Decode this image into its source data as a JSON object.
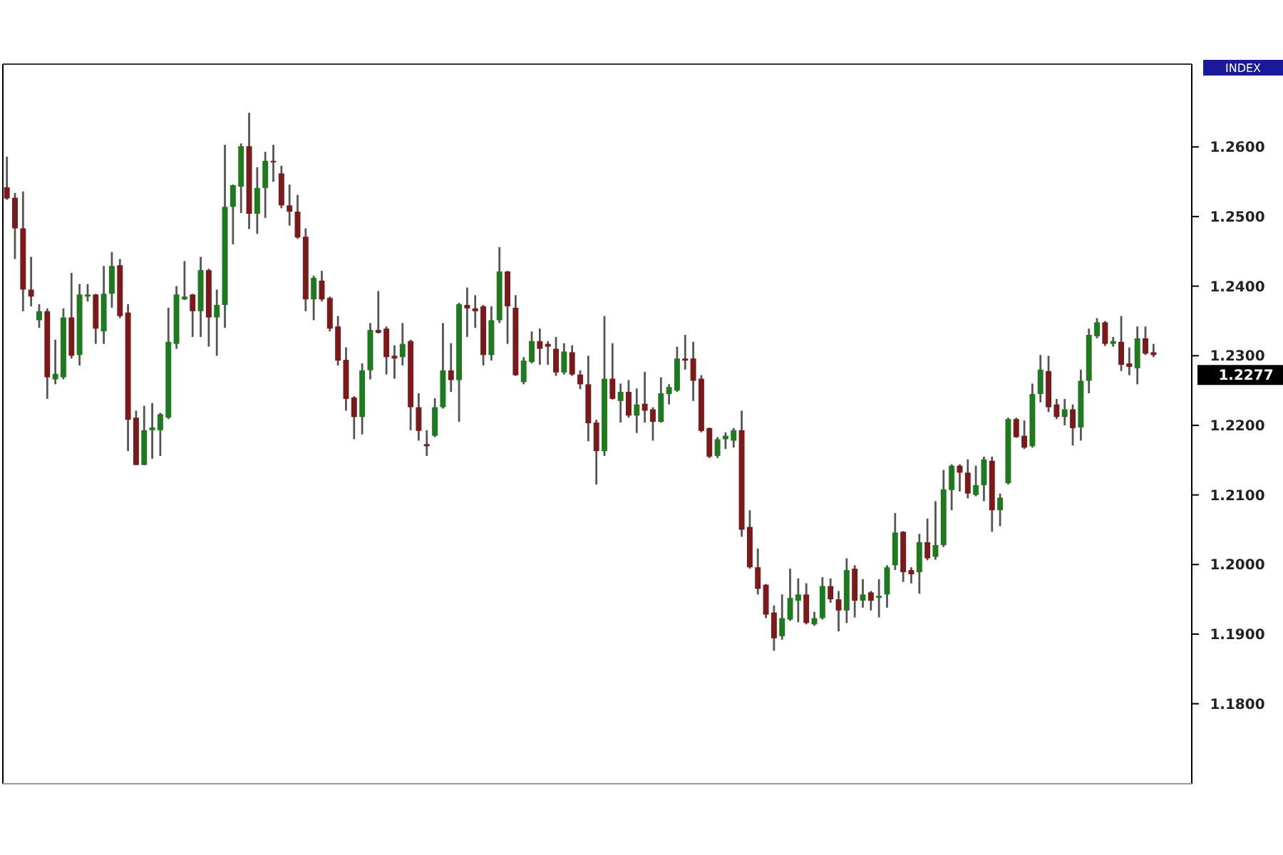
{
  "chart_data": {
    "type": "candlestick",
    "categories": [
      null,
      null,
      null,
      null,
      null,
      null,
      null,
      null,
      null,
      null,
      null,
      null,
      null,
      null,
      null,
      null,
      null,
      null,
      null,
      null,
      null,
      null,
      null,
      null,
      null,
      null,
      null,
      null,
      null,
      null,
      null,
      null,
      null,
      null,
      null,
      null,
      null,
      null,
      null,
      null,
      null,
      null,
      null,
      null,
      null,
      null,
      null,
      null,
      null,
      null,
      null,
      null,
      null,
      null,
      null,
      null,
      null,
      null,
      null,
      null,
      null,
      null,
      null,
      null,
      null,
      null,
      null,
      null,
      null,
      null,
      null,
      null,
      null,
      null,
      null,
      null,
      null,
      null,
      null,
      null,
      null,
      null,
      null,
      null,
      null,
      null,
      null,
      null,
      null,
      null,
      null,
      null,
      null,
      null,
      null,
      null,
      null,
      null,
      null,
      null,
      null,
      null,
      null,
      null,
      null,
      null,
      null,
      null,
      null,
      null,
      null,
      null,
      null,
      null,
      null,
      null,
      null,
      null,
      null,
      null,
      null,
      null,
      null,
      null,
      null,
      null,
      null,
      null,
      null,
      null,
      null,
      null,
      null,
      null,
      null,
      null,
      null,
      null,
      null,
      null,
      null,
      null,
      null
    ],
    "ohlc": [
      [
        1.2542,
        1.2586,
        1.2524,
        1.2526
      ],
      [
        1.2527,
        1.2534,
        1.2439,
        1.2483
      ],
      [
        1.2483,
        1.2536,
        1.2364,
        1.2395
      ],
      [
        1.2395,
        1.2442,
        1.2371,
        1.2385
      ],
      [
        1.2351,
        1.2374,
        1.234,
        1.2364
      ],
      [
        1.2364,
        1.2368,
        1.2238,
        1.2269
      ],
      [
        1.2266,
        1.2323,
        1.2259,
        1.2274
      ],
      [
        1.2269,
        1.2368,
        1.2266,
        1.2355
      ],
      [
        1.2355,
        1.2419,
        1.2296,
        1.23
      ],
      [
        1.2301,
        1.2403,
        1.2286,
        1.2388
      ],
      [
        1.2385,
        1.2403,
        1.2378,
        1.2388
      ],
      [
        1.2388,
        1.2389,
        1.2317,
        1.2339
      ],
      [
        1.2335,
        1.2429,
        1.2317,
        1.2389
      ],
      [
        1.2389,
        1.2449,
        1.2369,
        1.2429
      ],
      [
        1.243,
        1.2439,
        1.2354,
        1.2357
      ],
      [
        1.2362,
        1.2374,
        1.2163,
        1.2208
      ],
      [
        1.2211,
        1.2221,
        1.2143,
        1.2143
      ],
      [
        1.2143,
        1.2228,
        1.2143,
        1.2193
      ],
      [
        1.2193,
        1.2232,
        1.2152,
        1.2197
      ],
      [
        1.2193,
        1.2218,
        1.2156,
        1.2216
      ],
      [
        1.2211,
        1.2369,
        1.2209,
        1.232
      ],
      [
        1.2317,
        1.24,
        1.231,
        1.2388
      ],
      [
        1.2381,
        1.2436,
        1.238,
        1.2385
      ],
      [
        1.2388,
        1.2389,
        1.2327,
        1.2364
      ],
      [
        1.2364,
        1.2442,
        1.2327,
        1.2423
      ],
      [
        1.2423,
        1.2425,
        1.2313,
        1.2355
      ],
      [
        1.2355,
        1.2395,
        1.23,
        1.2373
      ],
      [
        1.2373,
        1.2603,
        1.234,
        1.2514
      ],
      [
        1.2514,
        1.2546,
        1.246,
        1.2545
      ],
      [
        1.2543,
        1.2605,
        1.2505,
        1.2601
      ],
      [
        1.2601,
        1.2649,
        1.2482,
        1.2504
      ],
      [
        1.2504,
        1.2571,
        1.2475,
        1.2541
      ],
      [
        1.2541,
        1.2593,
        1.2498,
        1.258
      ],
      [
        1.258,
        1.2603,
        1.255,
        1.2578
      ],
      [
        1.2562,
        1.2573,
        1.2512,
        1.2516
      ],
      [
        1.2516,
        1.2546,
        1.2487,
        1.2507
      ],
      [
        1.2507,
        1.2531,
        1.2468,
        1.247
      ],
      [
        1.2471,
        1.2483,
        1.2364,
        1.2381
      ],
      [
        1.2381,
        1.2415,
        1.2351,
        1.2412
      ],
      [
        1.2408,
        1.2422,
        1.2378,
        1.2381
      ],
      [
        1.2383,
        1.2385,
        1.2335,
        1.2339
      ],
      [
        1.2342,
        1.2357,
        1.2286,
        1.2293
      ],
      [
        1.2294,
        1.2312,
        1.2221,
        1.2238
      ],
      [
        1.224,
        1.2242,
        1.218,
        1.2212
      ],
      [
        1.2212,
        1.2289,
        1.2187,
        1.2279
      ],
      [
        1.2279,
        1.2347,
        1.2266,
        1.2337
      ],
      [
        1.2337,
        1.2393,
        1.2332,
        1.2333
      ],
      [
        1.2339,
        1.2342,
        1.2273,
        1.2298
      ],
      [
        1.23,
        1.2315,
        1.2267,
        1.2296
      ],
      [
        1.2298,
        1.2347,
        1.2286,
        1.2317
      ],
      [
        1.2321,
        1.2323,
        1.2193,
        1.2226
      ],
      [
        1.2226,
        1.2246,
        1.2178,
        1.2192
      ],
      [
        1.2173,
        1.2193,
        1.2156,
        1.217
      ],
      [
        1.2185,
        1.2239,
        1.2183,
        1.2226
      ],
      [
        1.2226,
        1.2347,
        1.2224,
        1.2279
      ],
      [
        1.2279,
        1.2318,
        1.2248,
        1.2265
      ],
      [
        1.2265,
        1.2376,
        1.2205,
        1.2374
      ],
      [
        1.2373,
        1.2398,
        1.2327,
        1.2368
      ],
      [
        1.2368,
        1.2387,
        1.234,
        1.2364
      ],
      [
        1.2371,
        1.2373,
        1.2286,
        1.2301
      ],
      [
        1.2301,
        1.2371,
        1.2293,
        1.2351
      ],
      [
        1.2351,
        1.2456,
        1.2347,
        1.2421
      ],
      [
        1.2421,
        1.2422,
        1.2317,
        1.2371
      ],
      [
        1.2369,
        1.2387,
        1.2271,
        1.2272
      ],
      [
        1.2262,
        1.2298,
        1.2259,
        1.2293
      ],
      [
        1.2291,
        1.2335,
        1.2289,
        1.2321
      ],
      [
        1.2321,
        1.2339,
        1.2287,
        1.231
      ],
      [
        1.2317,
        1.2321,
        1.2287,
        1.2313
      ],
      [
        1.231,
        1.2327,
        1.2271,
        1.2276
      ],
      [
        1.2276,
        1.2318,
        1.2273,
        1.2306
      ],
      [
        1.2305,
        1.2315,
        1.2271,
        1.2273
      ],
      [
        1.2273,
        1.2279,
        1.2252,
        1.2259
      ],
      [
        1.2259,
        1.23,
        1.2177,
        1.2203
      ],
      [
        1.2204,
        1.2208,
        1.2115,
        1.2163
      ],
      [
        1.2163,
        1.2357,
        1.2156,
        1.2267
      ],
      [
        1.2267,
        1.2318,
        1.2237,
        1.2238
      ],
      [
        1.2235,
        1.226,
        1.2204,
        1.2248
      ],
      [
        1.2248,
        1.2265,
        1.2211,
        1.2214
      ],
      [
        1.2214,
        1.2253,
        1.2189,
        1.223
      ],
      [
        1.2231,
        1.2277,
        1.2204,
        1.2221
      ],
      [
        1.2223,
        1.2226,
        1.2178,
        1.2205
      ],
      [
        1.2205,
        1.2269,
        1.2204,
        1.2246
      ],
      [
        1.2245,
        1.2259,
        1.223,
        1.2255
      ],
      [
        1.225,
        1.2313,
        1.2248,
        1.2296
      ],
      [
        1.2296,
        1.233,
        1.228,
        1.2293
      ],
      [
        1.2296,
        1.232,
        1.2235,
        1.2264
      ],
      [
        1.2267,
        1.2272,
        1.219,
        1.2192
      ],
      [
        1.2196,
        1.2197,
        1.2153,
        1.2155
      ],
      [
        1.2156,
        1.2183,
        1.2153,
        1.218
      ],
      [
        1.218,
        1.219,
        1.2166,
        1.2185
      ],
      [
        1.2178,
        1.2196,
        1.2168,
        1.2193
      ],
      [
        1.2193,
        1.2221,
        1.204,
        1.205
      ],
      [
        1.2054,
        1.2078,
        1.1994,
        1.1996
      ],
      [
        1.1996,
        1.2023,
        1.1957,
        1.1965
      ],
      [
        1.1971,
        1.1972,
        1.1923,
        1.1928
      ],
      [
        1.1931,
        1.1941,
        1.1876,
        1.1894
      ],
      [
        1.1897,
        1.1957,
        1.1892,
        1.1923
      ],
      [
        1.1921,
        1.1994,
        1.1919,
        1.1952
      ],
      [
        1.1948,
        1.198,
        1.1917,
        1.1957
      ],
      [
        1.1957,
        1.1973,
        1.1914,
        1.1916
      ],
      [
        1.1914,
        1.1932,
        1.1912,
        1.1923
      ],
      [
        1.1923,
        1.1982,
        1.1921,
        1.1969
      ],
      [
        1.1969,
        1.198,
        1.1945,
        1.195
      ],
      [
        1.195,
        1.1962,
        1.1904,
        1.1934
      ],
      [
        1.1934,
        1.2009,
        1.1916,
        1.1992
      ],
      [
        1.1994,
        1.1999,
        1.1924,
        1.1948
      ],
      [
        1.1948,
        1.1979,
        1.1938,
        1.1957
      ],
      [
        1.196,
        1.1962,
        1.1934,
        1.1948
      ],
      [
        1.1952,
        1.1979,
        1.1924,
        1.1955
      ],
      [
        1.1957,
        1.1999,
        1.1938,
        1.1996
      ],
      [
        1.1999,
        1.2074,
        1.1992,
        1.2046
      ],
      [
        1.2047,
        1.2048,
        1.1975,
        1.1989
      ],
      [
        1.1992,
        1.1996,
        1.1973,
        1.1986
      ],
      [
        1.1989,
        1.2044,
        1.1958,
        1.2032
      ],
      [
        1.2032,
        1.2066,
        1.2006,
        1.2009
      ],
      [
        1.2011,
        1.2091,
        1.2007,
        1.2028
      ],
      [
        1.2028,
        1.2136,
        1.2025,
        1.2108
      ],
      [
        1.2107,
        1.2144,
        1.2078,
        1.2142
      ],
      [
        1.2142,
        1.2144,
        1.2105,
        1.2132
      ],
      [
        1.2132,
        1.2151,
        1.2095,
        1.2102
      ],
      [
        1.21,
        1.2142,
        1.2098,
        1.2114
      ],
      [
        1.2114,
        1.2155,
        1.2091,
        1.2151
      ],
      [
        1.2149,
        1.2155,
        1.2047,
        1.2078
      ],
      [
        1.2078,
        1.2102,
        1.2055,
        1.2096
      ],
      [
        1.2117,
        1.2211,
        1.2115,
        1.2209
      ],
      [
        1.2209,
        1.2211,
        1.2182,
        1.2183
      ],
      [
        1.2185,
        1.2207,
        1.2166,
        1.2168
      ],
      [
        1.217,
        1.226,
        1.2168,
        1.2245
      ],
      [
        1.2245,
        1.2301,
        1.2233,
        1.228
      ],
      [
        1.2278,
        1.23,
        1.2219,
        1.2226
      ],
      [
        1.223,
        1.2238,
        1.2209,
        1.2212
      ],
      [
        1.2212,
        1.2238,
        1.22,
        1.2223
      ],
      [
        1.2223,
        1.223,
        1.2171,
        1.2196
      ],
      [
        1.2197,
        1.228,
        1.2178,
        1.2264
      ],
      [
        1.2264,
        1.2339,
        1.2246,
        1.233
      ],
      [
        1.2328,
        1.2354,
        1.2325,
        1.2348
      ],
      [
        1.2348,
        1.235,
        1.2314,
        1.2317
      ],
      [
        1.2317,
        1.2327,
        1.2313,
        1.2321
      ],
      [
        1.232,
        1.2357,
        1.2278,
        1.2287
      ],
      [
        1.2289,
        1.2312,
        1.2272,
        1.2284
      ],
      [
        1.2282,
        1.2342,
        1.2259,
        1.2325
      ],
      [
        1.2325,
        1.2342,
        1.2301,
        1.2303
      ],
      [
        1.2305,
        1.2317,
        1.2298,
        1.2301
      ]
    ],
    "ylim": [
      1.1685,
      1.2719
    ],
    "yticks": [
      {
        "value": 1.18,
        "label": "1.1800"
      },
      {
        "value": 1.19,
        "label": "1.1900"
      },
      {
        "value": 1.2,
        "label": "1.2000"
      },
      {
        "value": 1.21,
        "label": "1.2100"
      },
      {
        "value": 1.22,
        "label": "1.2200"
      },
      {
        "value": 1.23,
        "label": "1.2300"
      },
      {
        "value": 1.24,
        "label": "1.2400"
      },
      {
        "value": 1.25,
        "label": "1.2500"
      },
      {
        "value": 1.26,
        "label": "1.2600"
      }
    ],
    "annotations": [
      "INDEX",
      "1.2277"
    ],
    "tick_labels": "y"
  }
}
